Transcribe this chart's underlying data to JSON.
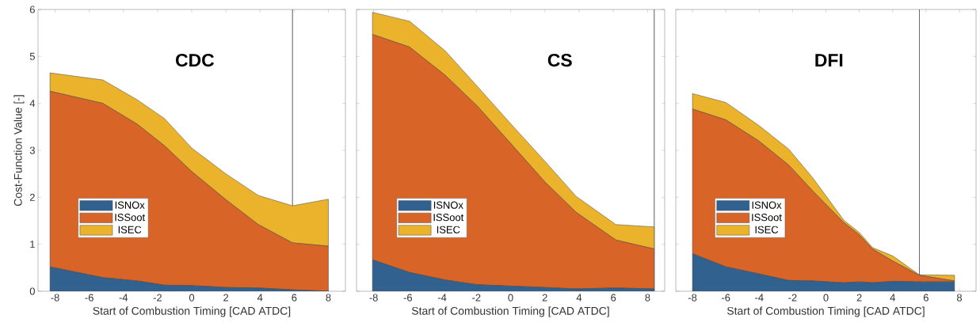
{
  "chart_data": [
    {
      "type": "area",
      "stacked": true,
      "title": "CDC",
      "xlabel": "Start of Combustion Timing [CAD ATDC]",
      "ylabel": "Cost-Function Value [-]",
      "x": [
        -8.3,
        -5.2,
        -3.2,
        -1.6,
        0,
        2.0,
        3.9,
        5.9,
        8.0
      ],
      "series": [
        {
          "name": "ISNOx",
          "color": "#31618f",
          "values": [
            0.52,
            0.29,
            0.22,
            0.13,
            0.12,
            0.08,
            0.07,
            0.03,
            0
          ]
        },
        {
          "name": "ISSoot",
          "color": "#d86427",
          "values": [
            3.74,
            3.71,
            3.34,
            2.97,
            2.43,
            1.87,
            1.35,
            1.0,
            0.96
          ]
        },
        {
          "name": "ISEC",
          "color": "#ebb32b",
          "values": [
            0.39,
            0.5,
            0.52,
            0.58,
            0.5,
            0.55,
            0.62,
            0.79,
            1.0
          ]
        }
      ],
      "xlim": [
        -9,
        9
      ],
      "ylim": [
        0,
        6
      ],
      "xticks": [
        -8,
        -6,
        -4,
        -2,
        0,
        2,
        4,
        6,
        8
      ],
      "yticks": [
        0,
        1,
        2,
        3,
        4,
        5,
        6
      ],
      "legend": "left",
      "ref_lines": [
        {
          "axis": "x",
          "value": 5.9,
          "color": "#333333"
        }
      ]
    },
    {
      "type": "area",
      "stacked": true,
      "title": "CS",
      "xlabel": "Start of Combustion Timing [CAD ATDC]",
      "x": [
        -8.07,
        -5.9,
        -3.82,
        -1.96,
        0,
        2,
        3.83,
        6.15,
        8.39
      ],
      "series": [
        {
          "name": "ISNOx",
          "color": "#31618f",
          "values": [
            0.67,
            0.4,
            0.24,
            0.14,
            0.11,
            0.08,
            0.05,
            0.07,
            0.05
          ]
        },
        {
          "name": "ISSoot",
          "color": "#d86427",
          "values": [
            4.8,
            4.8,
            4.36,
            3.81,
            3.04,
            2.25,
            1.63,
            1.02,
            0.85
          ]
        },
        {
          "name": "ISEC",
          "color": "#ebb32b",
          "values": [
            0.47,
            0.55,
            0.52,
            0.42,
            0.42,
            0.44,
            0.34,
            0.33,
            0.47
          ]
        }
      ],
      "xlim": [
        -9,
        9
      ],
      "ylim": [
        0,
        6
      ],
      "xticks": [
        -8,
        -6,
        -4,
        -2,
        0,
        2,
        4,
        6,
        8
      ],
      "yticks": [
        0,
        1,
        2,
        3,
        4,
        5,
        6
      ],
      "legend": "left",
      "tick_labels": "x",
      "ref_lines": [
        {
          "axis": "x",
          "value": 8.39,
          "color": "#333333"
        }
      ]
    },
    {
      "type": "area",
      "stacked": true,
      "title": "DFI",
      "xlabel": "Start of Combustion Timing [CAD ATDC]",
      "x": [
        -8,
        -6,
        -4.02,
        -2.24,
        -0.8,
        1.08,
        2,
        2.79,
        4.02,
        5.6,
        7.71
      ],
      "series": [
        {
          "name": "ISNOx",
          "color": "#31618f",
          "values": [
            0.8,
            0.52,
            0.37,
            0.23,
            0.22,
            0.18,
            0.2,
            0.18,
            0.21,
            0.2,
            0.2
          ]
        },
        {
          "name": "ISSoot",
          "color": "#d86427",
          "values": [
            3.08,
            3.13,
            2.83,
            2.46,
            1.92,
            1.28,
            1.0,
            0.72,
            0.43,
            0.14,
            0.02
          ]
        },
        {
          "name": "ISEC",
          "color": "#ebb32b",
          "values": [
            0.33,
            0.37,
            0.33,
            0.34,
            0.28,
            0.05,
            0.05,
            0.03,
            0.11,
            0.01,
            0.12
          ]
        }
      ],
      "xlim": [
        -9,
        9
      ],
      "ylim": [
        0,
        6
      ],
      "xticks": [
        -8,
        -6,
        -4,
        -2,
        0,
        2,
        4,
        6,
        8
      ],
      "yticks": [
        0,
        1,
        2,
        3,
        4,
        5,
        6
      ],
      "legend": "left",
      "tick_labels": "x",
      "ref_lines": [
        {
          "axis": "x",
          "value": 5.6,
          "color": "#333333"
        }
      ]
    }
  ]
}
